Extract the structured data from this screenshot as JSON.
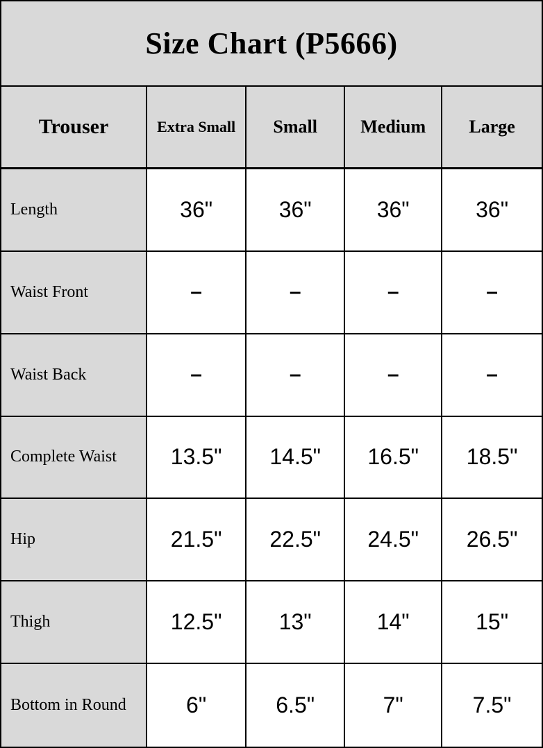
{
  "title": "Size Chart (P5666)",
  "table": {
    "corner_label": "Trouser",
    "columns": [
      "Extra Small",
      "Small",
      "Medium",
      "Large"
    ],
    "rows": [
      {
        "label": "Length",
        "values": [
          "36\"",
          "36\"",
          "36\"",
          "36\""
        ]
      },
      {
        "label": "Waist Front",
        "values": [
          "–",
          "–",
          "–",
          "–"
        ]
      },
      {
        "label": "Waist Back",
        "values": [
          "–",
          "–",
          "–",
          "–"
        ]
      },
      {
        "label": "Complete Waist",
        "values": [
          "13.5\"",
          "14.5\"",
          "16.5\"",
          "18.5\""
        ]
      },
      {
        "label": "Hip",
        "values": [
          "21.5\"",
          "22.5\"",
          "24.5\"",
          "26.5\""
        ]
      },
      {
        "label": "Thigh",
        "values": [
          "12.5\"",
          "13\"",
          "14\"",
          "15\""
        ]
      },
      {
        "label": "Bottom in Round",
        "values": [
          "6\"",
          "6.5\"",
          "7\"",
          "7.5\""
        ]
      }
    ]
  },
  "colors": {
    "panel_bg": "#d9d9d9",
    "cell_bg": "#ffffff",
    "border": "#000000",
    "text": "#000000"
  },
  "chart_data": {
    "type": "table",
    "title": "Size Chart (P5666)",
    "columns": [
      "Trouser",
      "Extra Small",
      "Small",
      "Medium",
      "Large"
    ],
    "rows": [
      [
        "Length",
        "36\"",
        "36\"",
        "36\"",
        "36\""
      ],
      [
        "Waist Front",
        "–",
        "–",
        "–",
        "–"
      ],
      [
        "Waist Back",
        "–",
        "–",
        "–",
        "–"
      ],
      [
        "Complete Waist",
        "13.5\"",
        "14.5\"",
        "16.5\"",
        "18.5\""
      ],
      [
        "Hip",
        "21.5\"",
        "22.5\"",
        "24.5\"",
        "26.5\""
      ],
      [
        "Thigh",
        "12.5\"",
        "13\"",
        "14\"",
        "15\""
      ],
      [
        "Bottom in Round",
        "6\"",
        "6.5\"",
        "7\"",
        "7.5\""
      ]
    ]
  }
}
